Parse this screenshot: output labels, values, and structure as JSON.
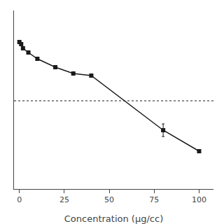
{
  "chart_data": {
    "type": "line",
    "x": [
      0,
      1,
      2,
      5,
      10,
      20,
      30,
      40,
      80,
      100
    ],
    "values": [
      100,
      99,
      97,
      95,
      92,
      88,
      85,
      84,
      58,
      48
    ],
    "yerr": [
      0,
      0,
      0,
      0,
      0,
      0,
      0,
      0,
      3,
      0
    ],
    "color": "#1a1a1a",
    "marker": "square",
    "line_style": "solid",
    "hline": {
      "y": 72,
      "line_style": "dotted"
    },
    "xlabel": "Concentration (μg/cc)",
    "xlim": [
      -3,
      108
    ],
    "ylim": [
      30,
      115
    ],
    "xticks": [
      0,
      25,
      50,
      75,
      100
    ],
    "yticks": [],
    "tick_labels": "x",
    "grid": false
  }
}
